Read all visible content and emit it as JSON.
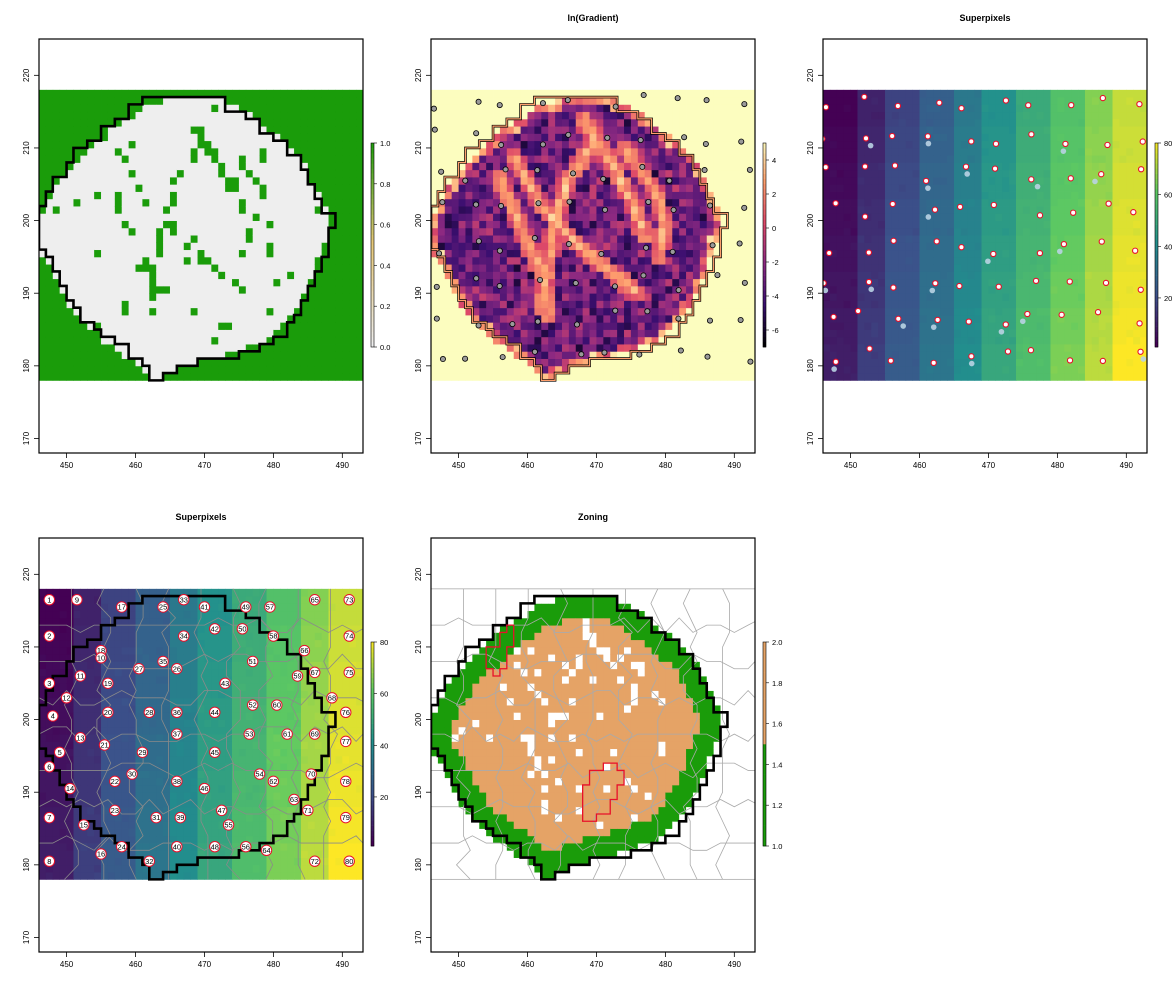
{
  "chart_data": [
    {
      "type": "heatmap",
      "title": "",
      "x_ticks": [
        450,
        460,
        470,
        480,
        490
      ],
      "y_ticks": [
        170,
        180,
        190,
        200,
        210,
        220
      ],
      "xlim": [
        446,
        493
      ],
      "ylim": [
        168,
        225
      ],
      "raster_extent": {
        "x": [
          446,
          493
        ],
        "y": [
          178,
          218
        ]
      },
      "legend": {
        "min": 0,
        "max": 1,
        "ticks": [
          "0.0",
          "0.2",
          "0.4",
          "0.6",
          "0.8",
          "1.0"
        ]
      },
      "colors": {
        "background": "#1a9c0a",
        "inside": "#eeeeee",
        "outline": "#000000"
      }
    },
    {
      "type": "heatmap",
      "title": "ln(Gradient)",
      "x_ticks": [
        450,
        460,
        470,
        480,
        490
      ],
      "y_ticks": [
        170,
        180,
        190,
        200,
        210,
        220
      ],
      "xlim": [
        446,
        493
      ],
      "ylim": [
        168,
        225
      ],
      "raster_extent": {
        "x": [
          446,
          493
        ],
        "y": [
          178,
          218
        ]
      },
      "legend": {
        "min": -7,
        "max": 5,
        "ticks": [
          "-6",
          "-4",
          "-2",
          "0",
          "2",
          "4"
        ]
      },
      "colors": {
        "background": "#fcfdbf",
        "palette": [
          "#000004",
          "#3b0f70",
          "#8c2981",
          "#de4968",
          "#fe9f6d",
          "#fcfdbf"
        ]
      }
    },
    {
      "type": "heatmap",
      "title": "Superpixels",
      "x_ticks": [
        450,
        460,
        470,
        480,
        490
      ],
      "y_ticks": [
        170,
        180,
        190,
        200,
        210,
        220
      ],
      "xlim": [
        446,
        493
      ],
      "ylim": [
        168,
        225
      ],
      "raster_extent": {
        "x": [
          446,
          493
        ],
        "y": [
          178,
          218
        ]
      },
      "legend": {
        "min": 1,
        "max": 80,
        "ticks": [
          "20",
          "40",
          "60",
          "80"
        ]
      },
      "colors": {
        "palette": [
          "#440154",
          "#3b528b",
          "#21908d",
          "#5dc962",
          "#fde725"
        ],
        "marker": "#e8102a"
      }
    },
    {
      "type": "heatmap",
      "title": "Superpixels",
      "x_ticks": [
        450,
        460,
        470,
        480,
        490
      ],
      "y_ticks": [
        170,
        180,
        190,
        200,
        210,
        220
      ],
      "xlim": [
        446,
        493
      ],
      "ylim": [
        168,
        225
      ],
      "raster_extent": {
        "x": [
          446,
          493
        ],
        "y": [
          178,
          218
        ]
      },
      "legend": {
        "min": 1,
        "max": 80,
        "ticks": [
          "20",
          "40",
          "60",
          "80"
        ]
      },
      "colors": {
        "palette": [
          "#440154",
          "#3b528b",
          "#21908d",
          "#5dc962",
          "#fde725"
        ]
      },
      "labels": [
        {
          "t": "1",
          "x": 447.5,
          "y": 216.5
        },
        {
          "t": "9",
          "x": 451.5,
          "y": 216.5
        },
        {
          "t": "17",
          "x": 458,
          "y": 215.5
        },
        {
          "t": "25",
          "x": 464,
          "y": 215.5
        },
        {
          "t": "33",
          "x": 467,
          "y": 216.5
        },
        {
          "t": "41",
          "x": 470,
          "y": 215.5
        },
        {
          "t": "49",
          "x": 476,
          "y": 215.5
        },
        {
          "t": "57",
          "x": 479.5,
          "y": 215.5
        },
        {
          "t": "65",
          "x": 486,
          "y": 216.5
        },
        {
          "t": "73",
          "x": 491,
          "y": 216.5
        },
        {
          "t": "2",
          "x": 447.5,
          "y": 211.5
        },
        {
          "t": "34",
          "x": 467,
          "y": 211.5
        },
        {
          "t": "42",
          "x": 471.5,
          "y": 212.5
        },
        {
          "t": "50",
          "x": 475.5,
          "y": 212.5
        },
        {
          "t": "58",
          "x": 480,
          "y": 211.5
        },
        {
          "t": "74",
          "x": 491,
          "y": 211.5
        },
        {
          "t": "18",
          "x": 455,
          "y": 209.5
        },
        {
          "t": "10",
          "x": 455,
          "y": 208.5
        },
        {
          "t": "66",
          "x": 484.5,
          "y": 209.5
        },
        {
          "t": "27",
          "x": 460.5,
          "y": 207
        },
        {
          "t": "35",
          "x": 464,
          "y": 208
        },
        {
          "t": "26",
          "x": 466,
          "y": 207
        },
        {
          "t": "51",
          "x": 477,
          "y": 208
        },
        {
          "t": "67",
          "x": 486,
          "y": 206.5
        },
        {
          "t": "75",
          "x": 491,
          "y": 206.5
        },
        {
          "t": "11",
          "x": 452,
          "y": 206
        },
        {
          "t": "19",
          "x": 456,
          "y": 205
        },
        {
          "t": "43",
          "x": 473,
          "y": 205
        },
        {
          "t": "59",
          "x": 483.5,
          "y": 206
        },
        {
          "t": "3",
          "x": 447.5,
          "y": 205
        },
        {
          "t": "12",
          "x": 450,
          "y": 203
        },
        {
          "t": "52",
          "x": 477,
          "y": 202
        },
        {
          "t": "60",
          "x": 480.5,
          "y": 202
        },
        {
          "t": "68",
          "x": 488.5,
          "y": 203
        },
        {
          "t": "76",
          "x": 490.5,
          "y": 201
        },
        {
          "t": "4",
          "x": 448,
          "y": 200.5
        },
        {
          "t": "20",
          "x": 456,
          "y": 201
        },
        {
          "t": "28",
          "x": 462,
          "y": 201
        },
        {
          "t": "36",
          "x": 466,
          "y": 201
        },
        {
          "t": "44",
          "x": 471.5,
          "y": 201
        },
        {
          "t": "13",
          "x": 452,
          "y": 197.5
        },
        {
          "t": "21",
          "x": 455.5,
          "y": 196.5
        },
        {
          "t": "37",
          "x": 466,
          "y": 198
        },
        {
          "t": "53",
          "x": 476.5,
          "y": 198
        },
        {
          "t": "61",
          "x": 482,
          "y": 198
        },
        {
          "t": "69",
          "x": 486,
          "y": 198
        },
        {
          "t": "77",
          "x": 490.5,
          "y": 197
        },
        {
          "t": "5",
          "x": 449,
          "y": 195.5
        },
        {
          "t": "29",
          "x": 461,
          "y": 195.5
        },
        {
          "t": "45",
          "x": 471.5,
          "y": 195.5
        },
        {
          "t": "6",
          "x": 447.5,
          "y": 193.5
        },
        {
          "t": "30",
          "x": 459.5,
          "y": 192.5
        },
        {
          "t": "54",
          "x": 478,
          "y": 192.5
        },
        {
          "t": "70",
          "x": 485.5,
          "y": 192.5
        },
        {
          "t": "14",
          "x": 450.5,
          "y": 190.5
        },
        {
          "t": "22",
          "x": 457,
          "y": 191.5
        },
        {
          "t": "38",
          "x": 466,
          "y": 191.5
        },
        {
          "t": "46",
          "x": 470,
          "y": 190.5
        },
        {
          "t": "62",
          "x": 480,
          "y": 191.5
        },
        {
          "t": "78",
          "x": 490.5,
          "y": 191.5
        },
        {
          "t": "23",
          "x": 457,
          "y": 187.5
        },
        {
          "t": "47",
          "x": 472.5,
          "y": 187.5
        },
        {
          "t": "63",
          "x": 483,
          "y": 189
        },
        {
          "t": "7",
          "x": 447.5,
          "y": 186.5
        },
        {
          "t": "15",
          "x": 452.5,
          "y": 185.5
        },
        {
          "t": "31",
          "x": 463,
          "y": 186.5
        },
        {
          "t": "39",
          "x": 466.5,
          "y": 186.5
        },
        {
          "t": "55",
          "x": 473.5,
          "y": 185.5
        },
        {
          "t": "71",
          "x": 485,
          "y": 187.5
        },
        {
          "t": "79",
          "x": 490.5,
          "y": 186.5
        },
        {
          "t": "24",
          "x": 458,
          "y": 182.5
        },
        {
          "t": "40",
          "x": 466,
          "y": 182.5
        },
        {
          "t": "48",
          "x": 471.5,
          "y": 182.5
        },
        {
          "t": "56",
          "x": 476,
          "y": 182.5
        },
        {
          "t": "64",
          "x": 479,
          "y": 182
        },
        {
          "t": "16",
          "x": 455,
          "y": 181.5
        },
        {
          "t": "8",
          "x": 447.5,
          "y": 180.5
        },
        {
          "t": "32",
          "x": 462,
          "y": 180.5
        },
        {
          "t": "72",
          "x": 486,
          "y": 180.5
        },
        {
          "t": "80",
          "x": 491,
          "y": 180.5
        }
      ]
    },
    {
      "type": "heatmap",
      "title": "Zoning",
      "x_ticks": [
        450,
        460,
        470,
        480,
        490
      ],
      "y_ticks": [
        170,
        180,
        190,
        200,
        210,
        220
      ],
      "xlim": [
        446,
        493
      ],
      "ylim": [
        168,
        225
      ],
      "raster_extent": {
        "x": [
          446,
          493
        ],
        "y": [
          178,
          218
        ]
      },
      "legend": {
        "min": 1,
        "max": 2,
        "ticks": [
          "1.0",
          "1.2",
          "1.4",
          "1.6",
          "1.8",
          "2.0"
        ]
      },
      "colors": {
        "zone1": "#1a9c0a",
        "zone2": "#e5a366",
        "gap": "#ffffff",
        "highlight": "#e8102a"
      }
    }
  ]
}
